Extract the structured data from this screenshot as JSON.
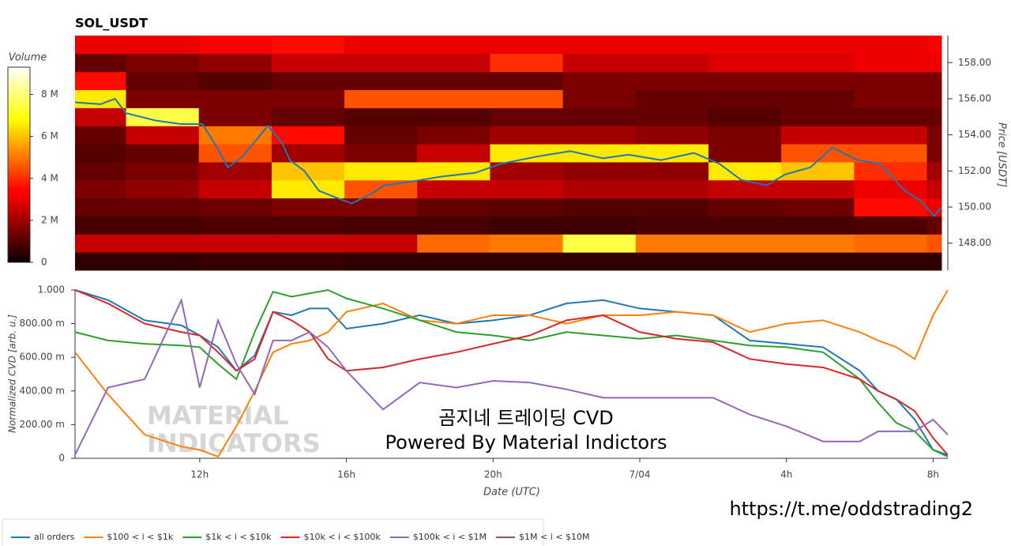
{
  "chart_data": [
    {
      "type": "heatmap",
      "title": "SOL_USDT",
      "colorbar_label": "Volume",
      "y2label": "Price [USDT]",
      "xlim": [
        8.6,
        32.4
      ],
      "x_bins": [
        8.6,
        10,
        12,
        14,
        16,
        18,
        20,
        22,
        24,
        26,
        28,
        30,
        32,
        32.4
      ],
      "y_bins": [
        146.5,
        147.5,
        148.5,
        149.5,
        150.5,
        151.5,
        152.5,
        153.5,
        154.5,
        155.5,
        156.5,
        157.5,
        158.5,
        159.5
      ],
      "y2lim": [
        146.5,
        159.5
      ],
      "y2ticks": [
        {
          "value": 148,
          "label": "148.00"
        },
        {
          "value": 150,
          "label": "150.00"
        },
        {
          "value": 152,
          "label": "152.00"
        },
        {
          "value": 154,
          "label": "154.00"
        },
        {
          "value": 156,
          "label": "156.00"
        },
        {
          "value": 158,
          "label": "158.00"
        }
      ],
      "clim": [
        0,
        9300000
      ],
      "cticks": [
        0,
        {
          "value": 2000000,
          "label": "2 M"
        },
        {
          "value": 4000000,
          "label": "4 M"
        },
        {
          "value": 6000000,
          "label": "6 M"
        },
        {
          "value": 8000000,
          "label": "8 M"
        }
      ],
      "z": [
        [
          500000,
          500000,
          600000,
          600000,
          500000,
          500000,
          500000,
          500000,
          500000,
          500000,
          500000,
          500000,
          500000
        ],
        [
          2500000,
          2500000,
          2500000,
          2500000,
          2500000,
          4800000,
          5000000,
          7500000,
          5000000,
          5000000,
          5000000,
          4800000,
          4500000
        ],
        [
          800000,
          800000,
          900000,
          900000,
          800000,
          800000,
          700000,
          700000,
          800000,
          800000,
          800000,
          900000,
          1200000
        ],
        [
          1200000,
          1200000,
          1300000,
          1500000,
          1500000,
          1200000,
          1100000,
          1000000,
          1000000,
          1200000,
          1300000,
          3500000,
          3000000
        ],
        [
          1500000,
          1800000,
          2500000,
          6500000,
          4500000,
          2500000,
          2500000,
          2200000,
          2200000,
          2500000,
          2500000,
          3000000,
          2500000
        ],
        [
          1200000,
          1500000,
          2000000,
          6000000,
          6500000,
          6500000,
          2000000,
          1800000,
          1800000,
          6500000,
          6000000,
          4000000,
          2000000
        ],
        [
          1000000,
          1200000,
          4500000,
          2000000,
          1500000,
          2500000,
          6500000,
          6500000,
          6500000,
          1500000,
          4500000,
          4500000,
          1500000
        ],
        [
          1200000,
          2500000,
          5000000,
          3500000,
          1200000,
          1500000,
          2000000,
          2000000,
          1800000,
          1500000,
          2500000,
          2500000,
          1500000
        ],
        [
          2500000,
          7500000,
          1500000,
          1200000,
          1000000,
          1000000,
          1200000,
          1200000,
          1200000,
          1000000,
          1200000,
          1200000,
          1200000
        ],
        [
          6500000,
          1500000,
          1500000,
          1500000,
          4500000,
          4500000,
          4500000,
          1500000,
          1200000,
          1200000,
          1200000,
          1500000,
          1500000
        ],
        [
          3500000,
          1200000,
          1000000,
          1200000,
          1200000,
          1200000,
          1200000,
          1500000,
          1500000,
          1500000,
          1500000,
          1500000,
          1500000
        ],
        [
          1200000,
          1500000,
          1800000,
          2500000,
          2500000,
          2500000,
          4000000,
          2500000,
          2500000,
          2800000,
          2800000,
          3000000,
          3000000
        ],
        [
          3000000,
          3000000,
          3200000,
          3500000,
          3000000,
          3000000,
          3000000,
          3000000,
          3000000,
          3000000,
          3000000,
          3000000,
          3200000
        ]
      ],
      "price_line": {
        "color": "#1f77b4",
        "x": [
          8.6,
          9.3,
          9.7,
          10.0,
          10.8,
          11.5,
          12.1,
          12.5,
          12.8,
          13.2,
          13.9,
          14.3,
          14.5,
          14.9,
          15.3,
          15.8,
          16.2,
          16.7,
          17.1,
          17.8,
          18.7,
          19.6,
          20.3,
          21.3,
          22.2,
          23.1,
          23.8,
          24.7,
          25.6,
          26.3,
          26.9,
          27.6,
          28.1,
          28.8,
          29.4,
          30.1,
          30.7,
          31.4,
          31.8,
          32.2,
          32.4
        ],
        "values": [
          155.8,
          155.7,
          156.0,
          155.2,
          154.8,
          154.6,
          154.6,
          153.3,
          152.2,
          152.8,
          154.5,
          153.5,
          152.6,
          152.0,
          150.9,
          150.5,
          150.2,
          150.7,
          151.2,
          151.4,
          151.7,
          151.9,
          152.4,
          152.8,
          153.1,
          152.7,
          152.9,
          152.6,
          153.0,
          152.4,
          151.5,
          151.2,
          151.8,
          152.2,
          153.3,
          152.6,
          152.4,
          150.9,
          150.4,
          149.5,
          150.0
        ]
      }
    },
    {
      "type": "line",
      "ylabel": "Normalized CVD [arb. u.]",
      "xlabel": "Date (UTC)",
      "xlim": [
        8.6,
        32.4
      ],
      "xticks": [
        {
          "value": 12,
          "label": "12h"
        },
        {
          "value": 16,
          "label": "16h"
        },
        {
          "value": 20,
          "label": "20h"
        },
        {
          "value": 24,
          "label": "7/04"
        },
        {
          "value": 28,
          "label": "4h"
        },
        {
          "value": 32,
          "label": "8h"
        }
      ],
      "ylim": [
        0,
        1
      ],
      "yticks": [
        0,
        {
          "value": 0.2,
          "label": "200.00 m"
        },
        {
          "value": 0.4,
          "label": "400.00 m"
        },
        {
          "value": 0.6,
          "label": "600.00 m"
        },
        {
          "value": 0.8,
          "label": "800.00 m"
        },
        {
          "value": 1,
          "label": "1.000"
        }
      ],
      "x": [
        8.6,
        9.5,
        10.5,
        11.5,
        12,
        12.5,
        13,
        13.5,
        14,
        14.5,
        15,
        15.5,
        16,
        17,
        18,
        19,
        20,
        21,
        22,
        23,
        24,
        25,
        26,
        27,
        28,
        29,
        30,
        30.5,
        31,
        31.5,
        32,
        32.4
      ],
      "series": [
        {
          "name": "all orders",
          "color": "#1f77b4",
          "values": [
            1.0,
            0.94,
            0.82,
            0.79,
            0.73,
            0.66,
            0.52,
            0.61,
            0.87,
            0.85,
            0.89,
            0.89,
            0.77,
            0.8,
            0.85,
            0.8,
            0.82,
            0.85,
            0.92,
            0.94,
            0.89,
            0.87,
            0.85,
            0.7,
            0.68,
            0.66,
            0.52,
            0.4,
            0.35,
            0.23,
            0.05,
            0.01
          ]
        },
        {
          "name": "$100 < i < $1k",
          "color": "#ff7f0e",
          "values": [
            0.63,
            0.38,
            0.14,
            0.07,
            0.05,
            0.01,
            0.19,
            0.4,
            0.63,
            0.68,
            0.7,
            0.75,
            0.87,
            0.92,
            0.82,
            0.8,
            0.85,
            0.85,
            0.8,
            0.85,
            0.85,
            0.87,
            0.85,
            0.75,
            0.8,
            0.82,
            0.75,
            0.7,
            0.66,
            0.59,
            0.85,
            1.0
          ]
        },
        {
          "name": "$1k < i < $10k",
          "color": "#2ca02c",
          "values": [
            0.75,
            0.7,
            0.68,
            0.67,
            0.66,
            0.56,
            0.47,
            0.75,
            0.99,
            0.96,
            0.98,
            1.0,
            0.95,
            0.89,
            0.82,
            0.75,
            0.73,
            0.7,
            0.75,
            0.73,
            0.71,
            0.73,
            0.7,
            0.67,
            0.66,
            0.63,
            0.47,
            0.33,
            0.21,
            0.16,
            0.05,
            0.02
          ]
        },
        {
          "name": "$10k < i < $100k",
          "color": "#d62728",
          "values": [
            1.0,
            0.92,
            0.8,
            0.75,
            0.73,
            0.63,
            0.52,
            0.59,
            0.87,
            0.82,
            0.75,
            0.59,
            0.52,
            0.54,
            0.59,
            0.63,
            0.68,
            0.73,
            0.82,
            0.85,
            0.75,
            0.71,
            0.69,
            0.59,
            0.56,
            0.54,
            0.47,
            0.4,
            0.35,
            0.28,
            0.12,
            0.02
          ]
        },
        {
          "name": "$100k < i < $1M",
          "color": "#9467bd",
          "values": [
            0.02,
            0.42,
            0.47,
            0.94,
            0.42,
            0.82,
            0.56,
            0.38,
            0.7,
            0.7,
            0.75,
            0.66,
            0.52,
            0.29,
            0.45,
            0.42,
            0.46,
            0.45,
            0.41,
            0.36,
            0.36,
            0.36,
            0.36,
            0.26,
            0.19,
            0.1,
            0.1,
            0.16,
            0.16,
            0.16,
            0.23,
            0.14
          ]
        },
        {
          "name": "$1M < i < $10M",
          "color": "#8c564b",
          "values": [
            null,
            null,
            null,
            null,
            null,
            null,
            null,
            null,
            null,
            null,
            null,
            null,
            null,
            null,
            null,
            null,
            null,
            null,
            null,
            null,
            null,
            null,
            null,
            null,
            null,
            null,
            null,
            null,
            null,
            null,
            null,
            null
          ]
        }
      ],
      "watermark": [
        "MATERIAL",
        "INDICATORS"
      ],
      "annotations": [
        "곰지네 트레이딩 CVD",
        "Powered By Material Indictors"
      ],
      "source": "https://t.me/oddstrading2"
    }
  ]
}
